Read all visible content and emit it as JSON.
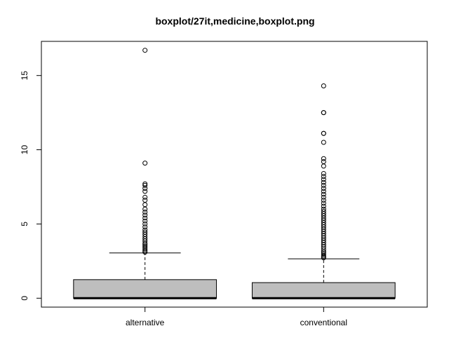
{
  "chart_data": {
    "type": "boxplot",
    "title": "boxplot/27it,medicine,boxplot.png",
    "xlabel": "",
    "ylabel": "",
    "ylim": [
      -0.6,
      17.3
    ],
    "y_ticks": [
      0,
      5,
      10,
      15
    ],
    "y_tick_labels": [
      "0",
      "5",
      "10",
      "15"
    ],
    "categories": [
      "alternative",
      "conventional"
    ],
    "box_fill": "#bebebe",
    "boxes": [
      {
        "category": "alternative",
        "min": 0,
        "q1": 0,
        "median": 0,
        "q3": 1.25,
        "whisker_high": 3.05,
        "outliers": [
          16.7,
          9.1,
          7.7,
          7.6,
          7.4,
          7.2,
          6.8,
          6.6,
          6.3,
          6.0,
          5.8,
          5.6,
          5.4,
          5.2,
          5.0,
          4.8,
          4.6,
          4.45,
          4.3,
          4.15,
          4.0,
          3.85,
          3.7,
          3.6,
          3.5,
          3.4,
          3.3,
          3.2,
          3.1
        ]
      },
      {
        "category": "conventional",
        "min": 0,
        "q1": 0,
        "median": 0,
        "q3": 1.05,
        "whisker_high": 2.65,
        "outliers": [
          14.3,
          12.5,
          12.5,
          11.1,
          11.1,
          10.5,
          9.4,
          9.2,
          8.9,
          8.4,
          8.2,
          8.0,
          7.8,
          7.6,
          7.4,
          7.2,
          7.0,
          6.8,
          6.6,
          6.4,
          6.2,
          6.0,
          5.85,
          5.7,
          5.55,
          5.4,
          5.25,
          5.1,
          4.95,
          4.8,
          4.65,
          4.5,
          4.35,
          4.2,
          4.05,
          3.9,
          3.75,
          3.6,
          3.45,
          3.3,
          3.15,
          3.05,
          2.95,
          2.85,
          2.78,
          2.72
        ]
      }
    ]
  }
}
